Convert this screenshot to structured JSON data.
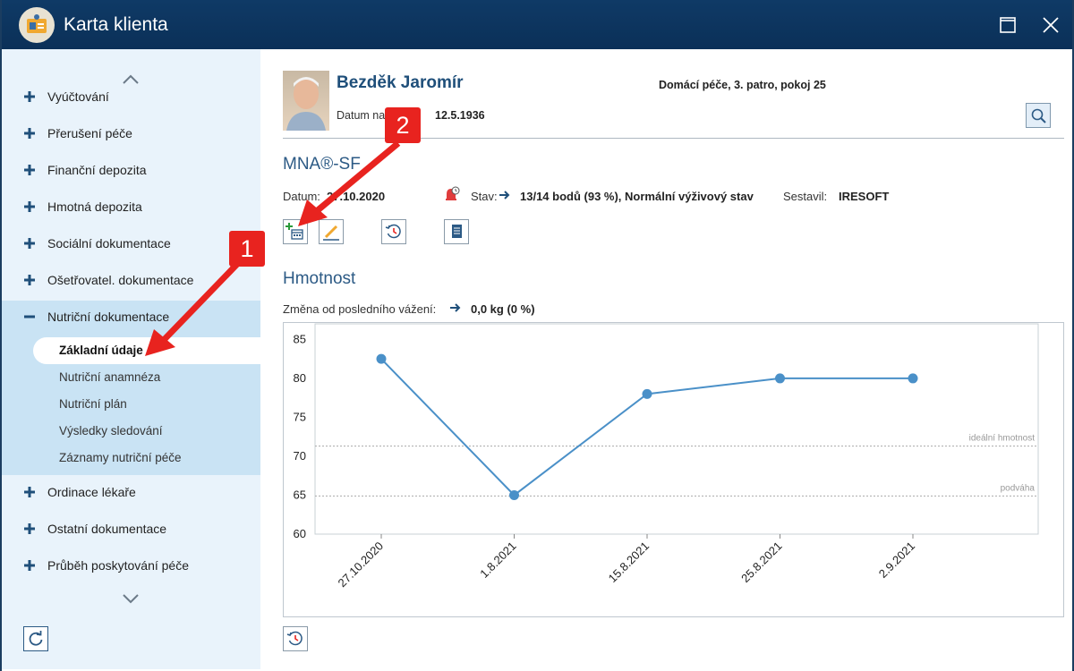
{
  "window": {
    "title": "Karta klienta",
    "icons": {
      "app": "client-card-icon",
      "maximize": "maximize-icon",
      "close": "close-icon"
    }
  },
  "sidebar": {
    "items": [
      {
        "label": "Vyúčtování",
        "icon": "plus-icon"
      },
      {
        "label": "Přerušení péče",
        "icon": "plus-icon"
      },
      {
        "label": "Finanční depozita",
        "icon": "plus-icon"
      },
      {
        "label": "Hmotná depozita",
        "icon": "plus-icon"
      },
      {
        "label": "Sociální dokumentace",
        "icon": "plus-icon"
      },
      {
        "label": "Ošetřovatel. dokumentace",
        "icon": "plus-icon"
      },
      {
        "label": "Nutriční dokumentace",
        "icon": "minus-icon",
        "expanded": true,
        "children": [
          {
            "label": "Základní údaje",
            "selected": true
          },
          {
            "label": "Nutriční anamnéza"
          },
          {
            "label": "Nutriční plán"
          },
          {
            "label": "Výsledky sledování"
          },
          {
            "label": "Záznamy nutriční péče"
          }
        ]
      },
      {
        "label": "Ordinace lékaře",
        "icon": "plus-icon"
      },
      {
        "label": "Ostatní dokumentace",
        "icon": "plus-icon"
      },
      {
        "label": "Průběh poskytování péče",
        "icon": "plus-icon"
      }
    ],
    "icons": {
      "scroll_up": "chevron-up-icon",
      "scroll_down": "chevron-down-icon",
      "refresh": "refresh-icon"
    }
  },
  "client": {
    "name": "Bezděk Jaromír",
    "birth_label": "Datum narození:",
    "birth_date": "12.5.1936",
    "location": "Domácí péče, 3. patro, pokoj 25"
  },
  "mna": {
    "title": "MNA®-SF",
    "date_label": "Datum:",
    "date": "27.10.2020",
    "status_label": "Stav:",
    "status_value": "13/14 bodů (93 %), Normální výživový stav",
    "author_label": "Sestavil:",
    "author": "IRESOFT",
    "toolbar_icons": [
      "add-calendar-icon",
      "edit-pencil-icon",
      "history-icon",
      "document-icon"
    ]
  },
  "weight": {
    "title": "Hmotnost",
    "change_label": "Změna od posledního vážení:",
    "change_value": "0,0 kg (0 %)"
  },
  "annotations": [
    {
      "number": "1",
      "color": "#e8231f"
    },
    {
      "number": "2",
      "color": "#e8231f"
    }
  ],
  "colors": {
    "accent": "#2c5a85",
    "titlebar": "#0f3a66",
    "series": "#4a90c8",
    "annotation": "#e8231f"
  },
  "chart_data": {
    "type": "line",
    "categories": [
      "27.10.2020",
      "1.8.2021",
      "15.8.2021",
      "25.8.2021",
      "2.9.2021"
    ],
    "series": [
      {
        "values": [
          82.5,
          65,
          78,
          80,
          80
        ]
      }
    ],
    "ylim": [
      60,
      87
    ],
    "yticks": [
      60,
      65,
      70,
      75,
      80,
      85
    ],
    "reference_lines": [
      {
        "label": "ideální hmotnost",
        "value": 71.3
      },
      {
        "label": "podváha",
        "value": 64.9
      }
    ],
    "grid": false
  }
}
